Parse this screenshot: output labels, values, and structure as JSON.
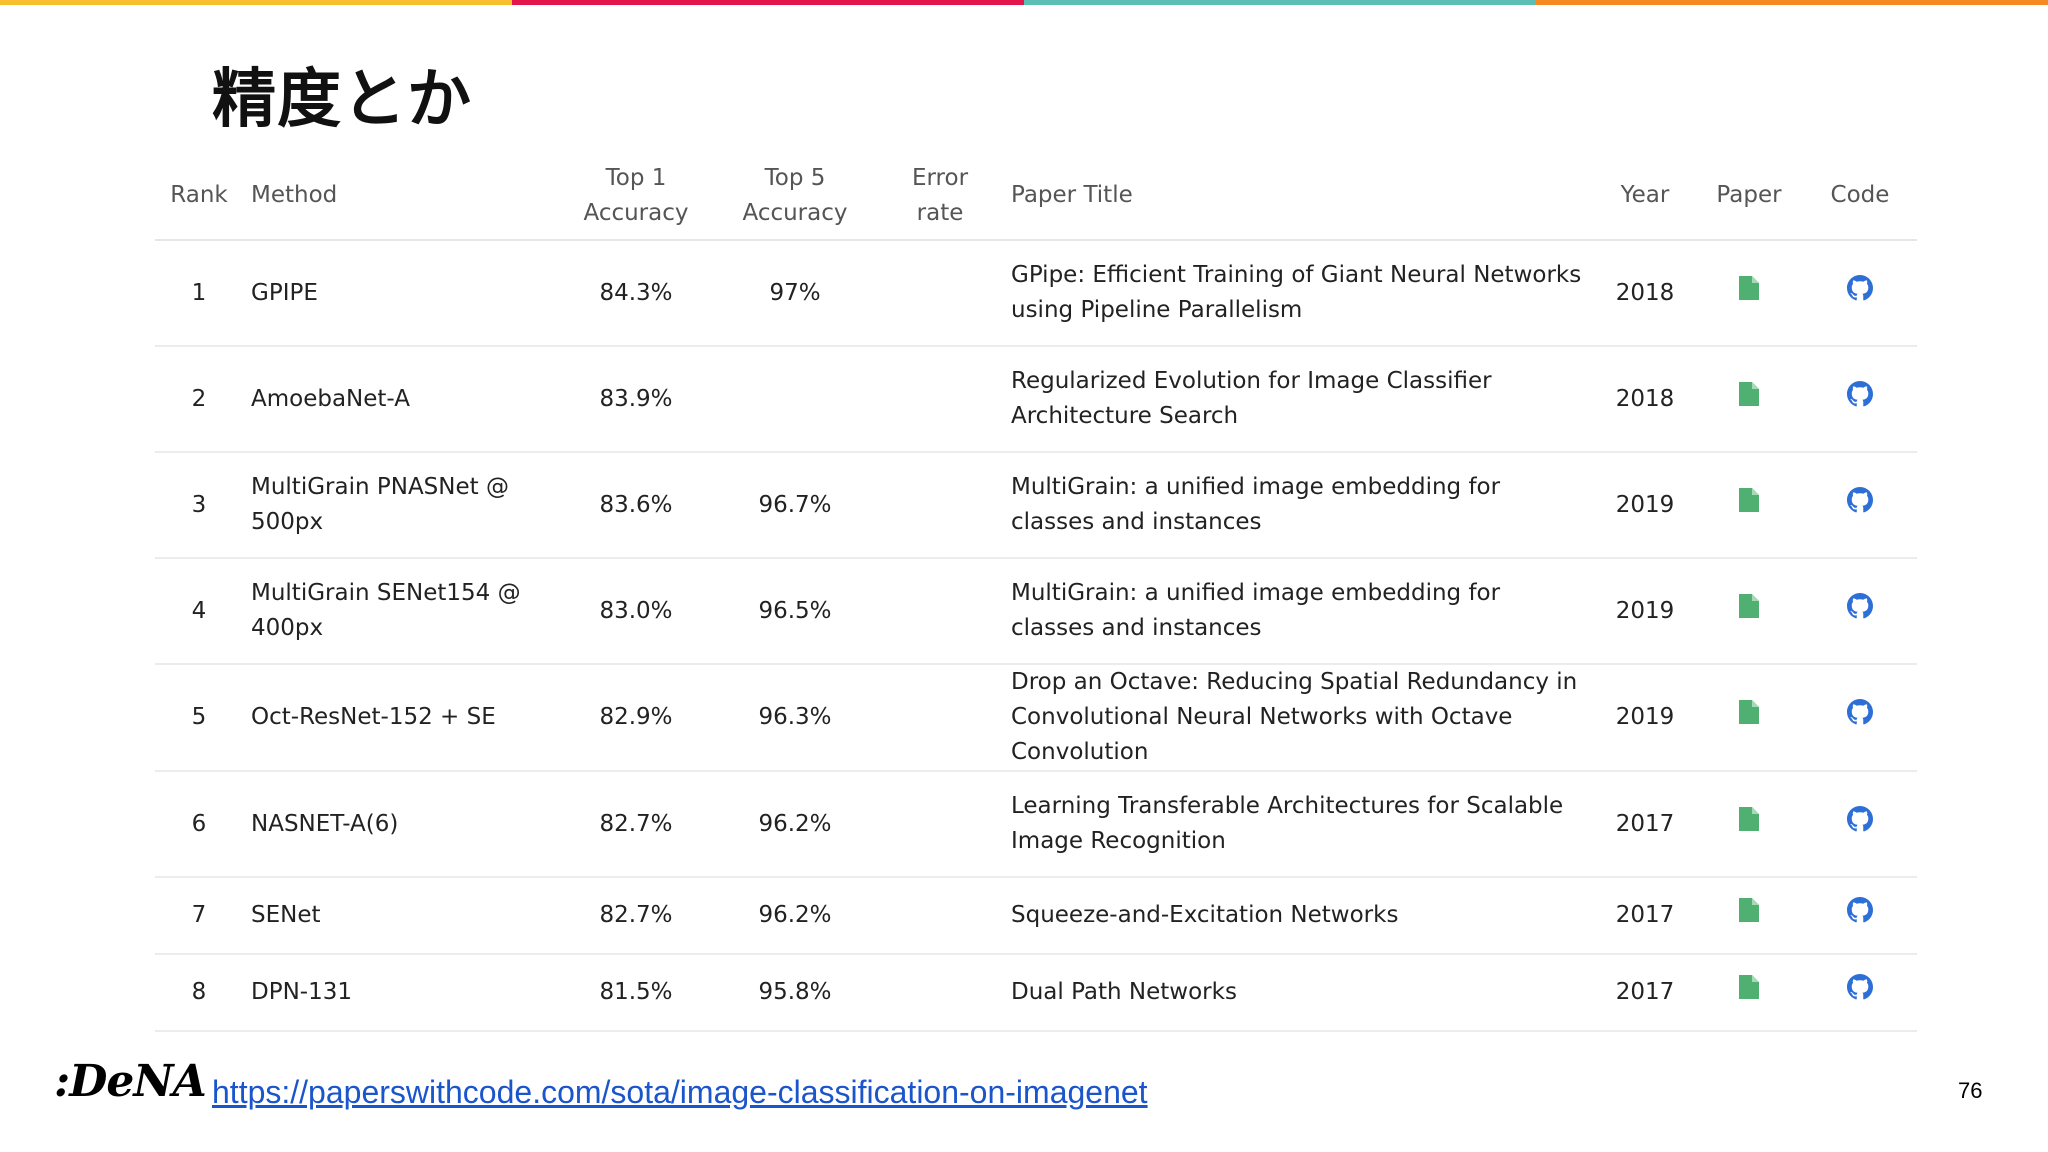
{
  "colors": {
    "topbar": [
      "#f8c02e",
      "#e4144d",
      "#5cbfb3",
      "#f58a23"
    ],
    "link": "#1a55cc",
    "paper_title": "#3f9e94",
    "paper_icon": "#4fb071",
    "code_icon": "#2d6fd6"
  },
  "slide": {
    "title": "精度とか",
    "logo": ":DeNA",
    "source_url": "https://paperswithcode.com/sota/image-classification-on-imagenet",
    "page_number": "76"
  },
  "table": {
    "headers": {
      "rank": "Rank",
      "method": "Method",
      "top1_a": "Top 1",
      "top1_b": "Accuracy",
      "top5_a": "Top 5",
      "top5_b": "Accuracy",
      "error_a": "Error",
      "error_b": "rate",
      "paper_title": "Paper Title",
      "year": "Year",
      "paper": "Paper",
      "code": "Code"
    },
    "rows": [
      {
        "rank": "1",
        "method": "GPIPE",
        "top1": "84.3%",
        "top5": "97%",
        "error": "",
        "paper_title": "GPipe: Efficient Training of Giant Neural Networks using Pipeline Parallelism",
        "year": "2018",
        "paper_icon": "document-icon",
        "code_icon": "github-icon"
      },
      {
        "rank": "2",
        "method": "AmoebaNet-A",
        "top1": "83.9%",
        "top5": "",
        "error": "",
        "paper_title": "Regularized Evolution for Image Classifier Architecture Search",
        "year": "2018",
        "paper_icon": "document-icon",
        "code_icon": "github-icon"
      },
      {
        "rank": "3",
        "method": "MultiGrain PNASNet @ 500px",
        "top1": "83.6%",
        "top5": "96.7%",
        "error": "",
        "paper_title": "MultiGrain: a unified image embedding for classes and instances",
        "year": "2019",
        "paper_icon": "document-icon",
        "code_icon": "github-icon"
      },
      {
        "rank": "4",
        "method": "MultiGrain SENet154 @ 400px",
        "top1": "83.0%",
        "top5": "96.5%",
        "error": "",
        "paper_title": "MultiGrain: a unified image embedding for classes and instances",
        "year": "2019",
        "paper_icon": "document-icon",
        "code_icon": "github-icon"
      },
      {
        "rank": "5",
        "method": "Oct-ResNet-152 + SE",
        "top1": "82.9%",
        "top5": "96.3%",
        "error": "",
        "paper_title": "Drop an Octave: Reducing Spatial Redundancy in Convolutional Neural Networks with Octave Convolution",
        "year": "2019",
        "paper_icon": "document-icon",
        "code_icon": "github-icon"
      },
      {
        "rank": "6",
        "method": "NASNET-A(6)",
        "top1": "82.7%",
        "top5": "96.2%",
        "error": "",
        "paper_title": "Learning Transferable Architectures for Scalable Image Recognition",
        "year": "2017",
        "paper_icon": "document-icon",
        "code_icon": "github-icon"
      },
      {
        "rank": "7",
        "method": "SENet",
        "top1": "82.7%",
        "top5": "96.2%",
        "error": "",
        "paper_title": "Squeeze-and-Excitation Networks",
        "year": "2017",
        "paper_icon": "document-icon",
        "code_icon": "github-icon"
      },
      {
        "rank": "8",
        "method": "DPN-131",
        "top1": "81.5%",
        "top5": "95.8%",
        "error": "",
        "paper_title": "Dual Path Networks",
        "year": "2017",
        "paper_icon": "document-icon",
        "code_icon": "github-icon"
      }
    ]
  }
}
